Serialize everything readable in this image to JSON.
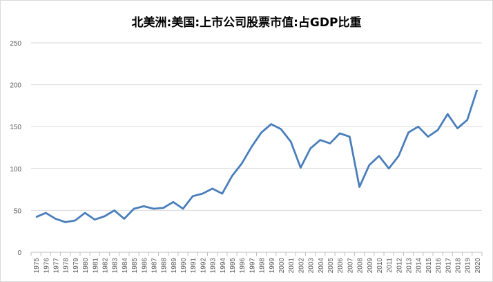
{
  "chart_data": {
    "type": "line",
    "title": "北美洲:美国:上市公司股票市值:占GDP比重",
    "xlabel": "",
    "ylabel": "",
    "ylim": [
      0,
      250
    ],
    "yticks": [
      0,
      50,
      100,
      150,
      200,
      250
    ],
    "grid": true,
    "legend": "none",
    "color": "#4a7ebb",
    "categories": [
      "1975",
      "1976",
      "1977",
      "1978",
      "1979",
      "1980",
      "1981",
      "1982",
      "1983",
      "1984",
      "1985",
      "1986",
      "1987",
      "1988",
      "1989",
      "1990",
      "1991",
      "1992",
      "1993",
      "1994",
      "1995",
      "1996",
      "1997",
      "1998",
      "1999",
      "2000",
      "2001",
      "2002",
      "2003",
      "2004",
      "2005",
      "2006",
      "2007",
      "2008",
      "2009",
      "2010",
      "2011",
      "2012",
      "2013",
      "2014",
      "2015",
      "2016",
      "2017",
      "2018",
      "2019",
      "2020"
    ],
    "series": [
      {
        "name": "占GDP比重",
        "values": [
          42,
          47,
          40,
          36,
          38,
          47,
          39,
          43,
          50,
          40,
          52,
          55,
          52,
          53,
          60,
          52,
          67,
          70,
          76,
          70,
          91,
          106,
          126,
          143,
          153,
          147,
          132,
          101,
          124,
          134,
          130,
          142,
          138,
          78,
          104,
          115,
          100,
          115,
          143,
          150,
          138,
          146,
          165,
          148,
          158,
          194
        ]
      }
    ]
  }
}
